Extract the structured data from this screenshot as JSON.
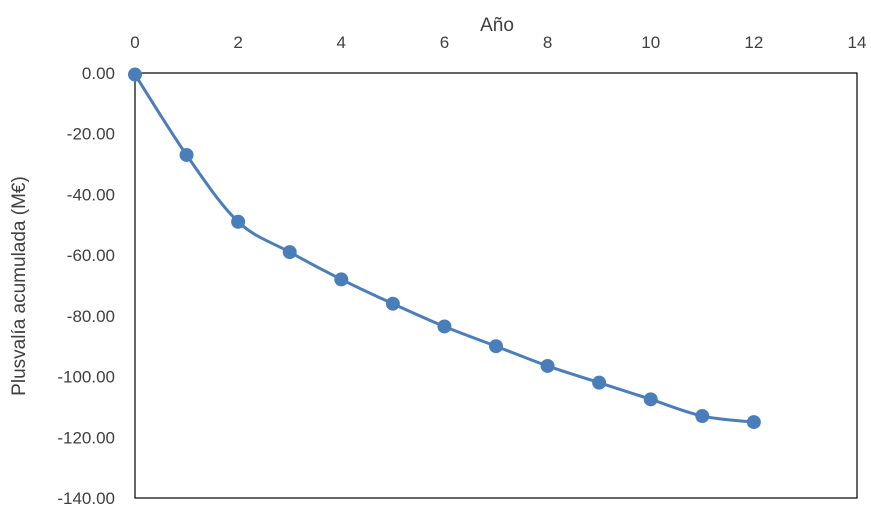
{
  "chart_data": {
    "type": "line",
    "title": "",
    "xlabel": "Año",
    "ylabel": "Plusvalía acumulada (M€)",
    "x_axis_position": "top",
    "xlim": [
      0,
      14
    ],
    "ylim": [
      -140,
      0
    ],
    "x_ticks": [
      "0",
      "2",
      "4",
      "6",
      "8",
      "10",
      "12",
      "14"
    ],
    "y_ticks": [
      "0.00",
      "-20.00",
      "-40.00",
      "-60.00",
      "-80.00",
      "-100.00",
      "-120.00",
      "-140.00"
    ],
    "grid": false,
    "legend": "none",
    "line_style": "smoothed, with circular markers",
    "series_color": "#4a7ebb",
    "series": [
      {
        "x": [
          0,
          1,
          2,
          3,
          4,
          5,
          6,
          7,
          8,
          9,
          10,
          11,
          12
        ],
        "values": [
          -0.5,
          -27.0,
          -49.0,
          -59.0,
          -68.0,
          -76.0,
          -83.5,
          -90.0,
          -96.5,
          -102.0,
          -107.5,
          -113.0,
          -115.0
        ]
      }
    ]
  }
}
